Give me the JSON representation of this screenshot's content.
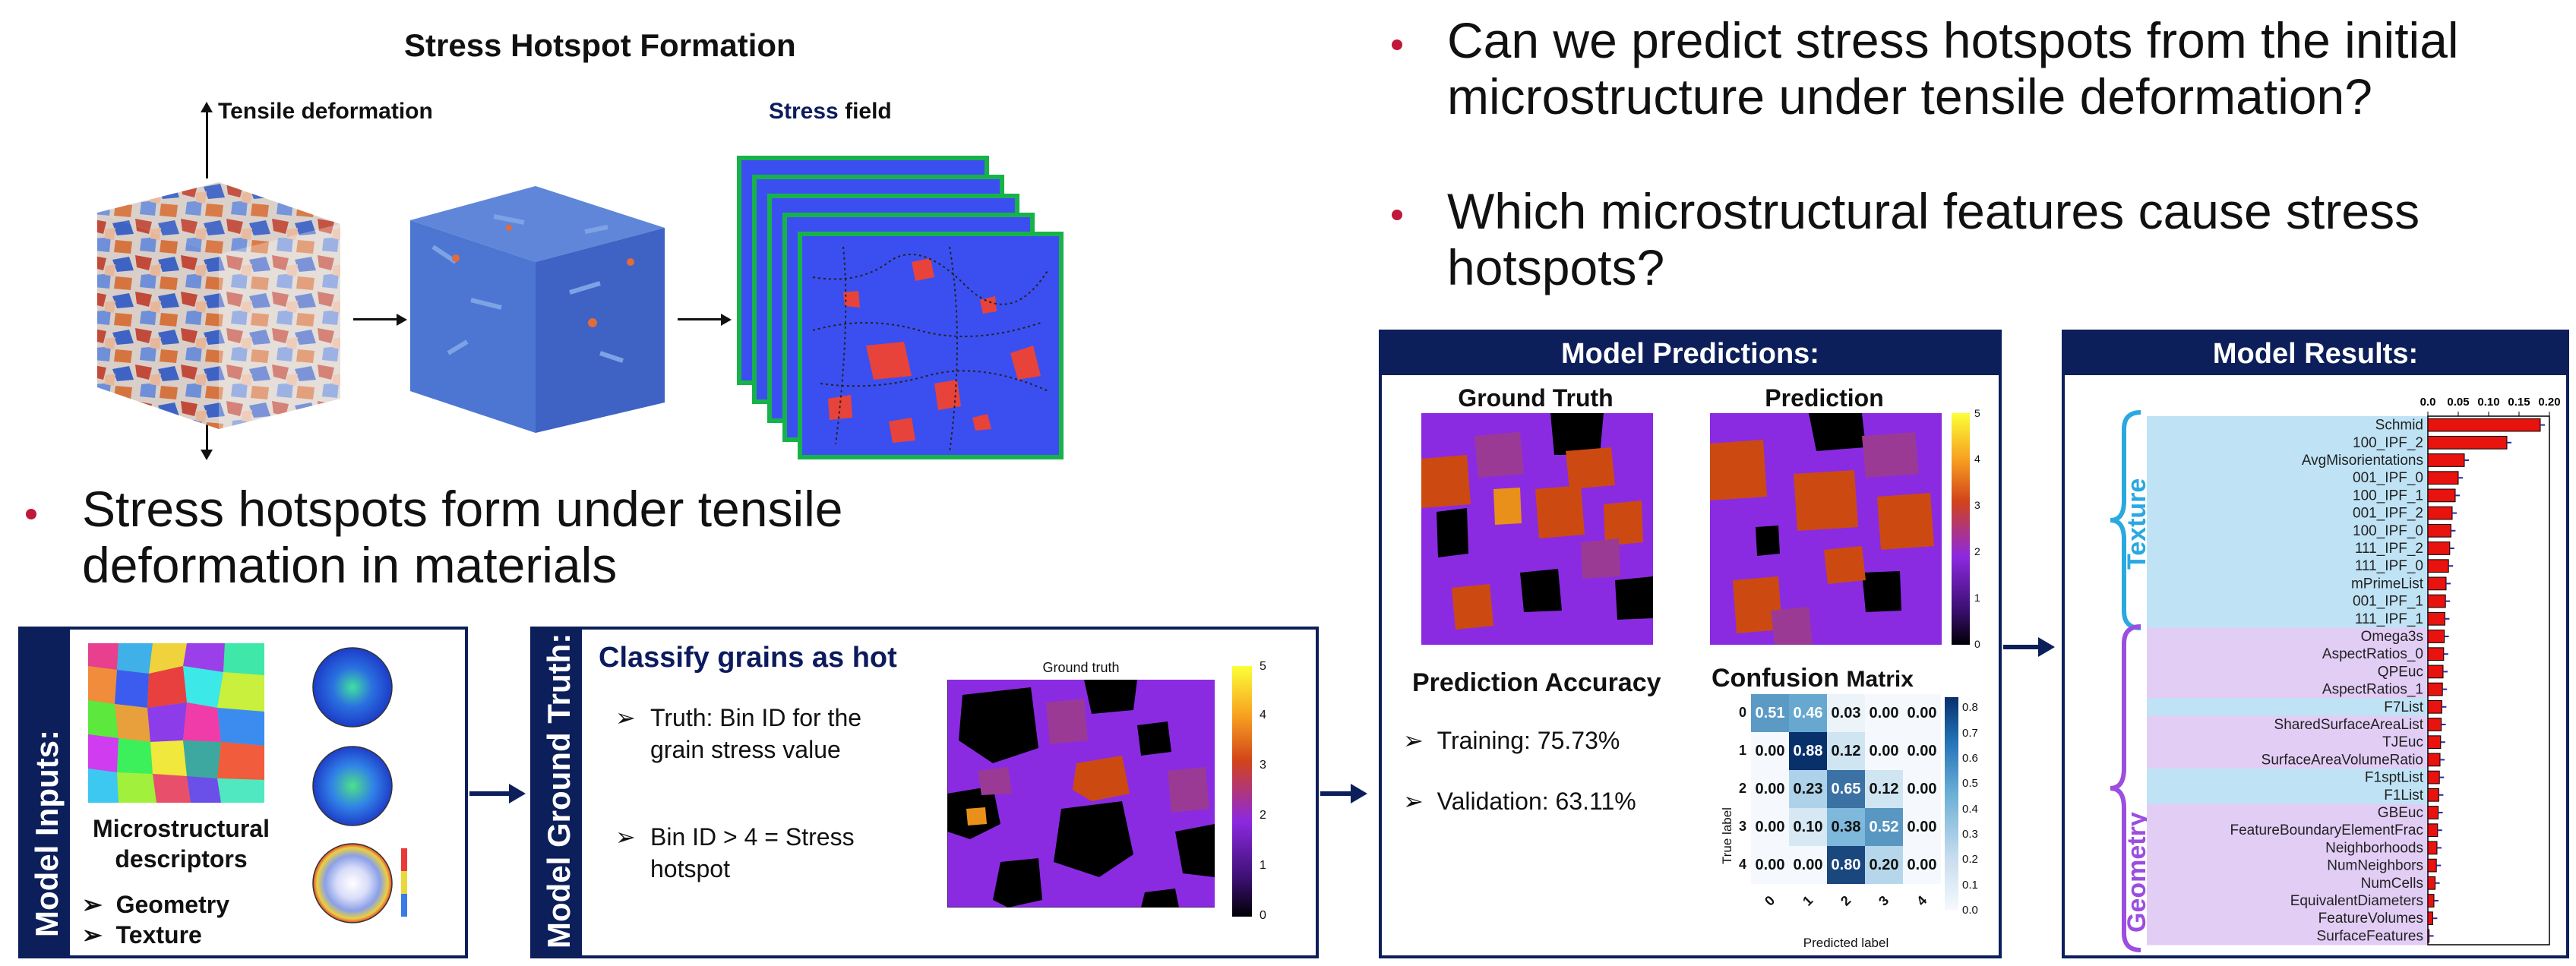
{
  "left_panel": {
    "title": "Stress Hotspot Formation",
    "tensile_label": "Tensile deformation",
    "stress_field_word1": "Stress",
    "stress_field_word2": "field",
    "bullet": "Stress hotspots form under tensile deformation in materials"
  },
  "right_bullets": [
    "Can we predict stress hotspots from the initial microstructure under tensile deformation?",
    "Which microstructural features cause stress hotspots?"
  ],
  "model_inputs": {
    "label": "Model Inputs:",
    "desc": "Microstructural descriptors",
    "items": [
      "Geometry",
      "Texture"
    ]
  },
  "model_ground_truth": {
    "label": "Model Ground Truth:",
    "heading": "Classify grains as hot",
    "bullets": [
      "Truth: Bin ID for the grain stress value",
      "Bin ID > 4 = Stress hotspot"
    ],
    "map_title": "Ground truth",
    "colorbar_ticks": [
      "0",
      "1",
      "2",
      "3",
      "4",
      "5"
    ]
  },
  "model_predictions": {
    "header": "Model Predictions:",
    "gt_title": "Ground Truth",
    "pred_title": "Prediction",
    "colorbar_ticks": [
      "0",
      "1",
      "2",
      "3",
      "4",
      "5"
    ],
    "accuracy_title": "Prediction Accuracy",
    "training": "Training: 75.73%",
    "validation": "Validation: 63.11%",
    "cm_title1": "Confusion",
    "cm_title2": "Matrix",
    "cm_ylabel": "True label",
    "cm_xlabel": "Predicted label",
    "cm_labels": [
      "0",
      "1",
      "2",
      "3",
      "4"
    ],
    "cm_values": [
      [
        0.51,
        0.46,
        0.03,
        0.0,
        0.0
      ],
      [
        0.0,
        0.88,
        0.12,
        0.0,
        0.0
      ],
      [
        0.0,
        0.23,
        0.65,
        0.12,
        0.0
      ],
      [
        0.0,
        0.1,
        0.38,
        0.52,
        0.0
      ],
      [
        0.0,
        0.0,
        0.8,
        0.2,
        0.0
      ]
    ],
    "cm_colorbar_ticks": [
      "0.0",
      "0.1",
      "0.2",
      "0.3",
      "0.4",
      "0.5",
      "0.6",
      "0.7",
      "0.8"
    ]
  },
  "model_results": {
    "header": "Model Results:",
    "group_texture": "Texture",
    "group_geometry": "Geometry",
    "chart_data": {
      "type": "bar",
      "orientation": "horizontal",
      "xlim": [
        0,
        0.2
      ],
      "x_ticks": [
        "0.0",
        "0.05",
        "0.10",
        "0.15",
        "0.20"
      ],
      "categories": [
        "Schmid",
        "100_IPF_2",
        "AvgMisorientations",
        "001_IPF_0",
        "100_IPF_1",
        "001_IPF_2",
        "100_IPF_0",
        "111_IPF_2",
        "111_IPF_0",
        "mPrimeList",
        "001_IPF_1",
        "111_IPF_1",
        "Omega3s",
        "AspectRatios_0",
        "QPEuc",
        "AspectRatios_1",
        "F7List",
        "SharedSurfaceAreaList",
        "TJEuc",
        "SurfaceAreaVolumeRatio",
        "F1sptList",
        "F1List",
        "GBEuc",
        "FeatureBoundaryElementFrac",
        "Neighborhoods",
        "NumNeighbors",
        "NumCells",
        "EquivalentDiameters",
        "FeatureVolumes",
        "SurfaceFeatures"
      ],
      "values": [
        0.185,
        0.13,
        0.06,
        0.05,
        0.045,
        0.04,
        0.038,
        0.036,
        0.034,
        0.03,
        0.029,
        0.028,
        0.027,
        0.026,
        0.025,
        0.024,
        0.023,
        0.022,
        0.021,
        0.02,
        0.019,
        0.018,
        0.017,
        0.016,
        0.015,
        0.014,
        0.012,
        0.01,
        0.008,
        0.002
      ],
      "groups": [
        "texture",
        "texture",
        "texture",
        "texture",
        "texture",
        "texture",
        "texture",
        "texture",
        "texture",
        "texture",
        "texture",
        "texture",
        "geometry",
        "geometry",
        "geometry",
        "geometry",
        "texture",
        "geometry",
        "geometry",
        "geometry",
        "texture",
        "texture",
        "geometry",
        "geometry",
        "geometry",
        "geometry",
        "geometry",
        "geometry",
        "geometry",
        "geometry"
      ]
    }
  },
  "colors": {
    "navy": "#0c1f5a",
    "bullet_red": "#c0173b",
    "bar_red": "#e8120f",
    "texture_band": "#bfe3f5",
    "geometry_band": "#e2cdf5",
    "texture_brace": "#29a9e0",
    "geometry_brace": "#9b4ee0"
  }
}
